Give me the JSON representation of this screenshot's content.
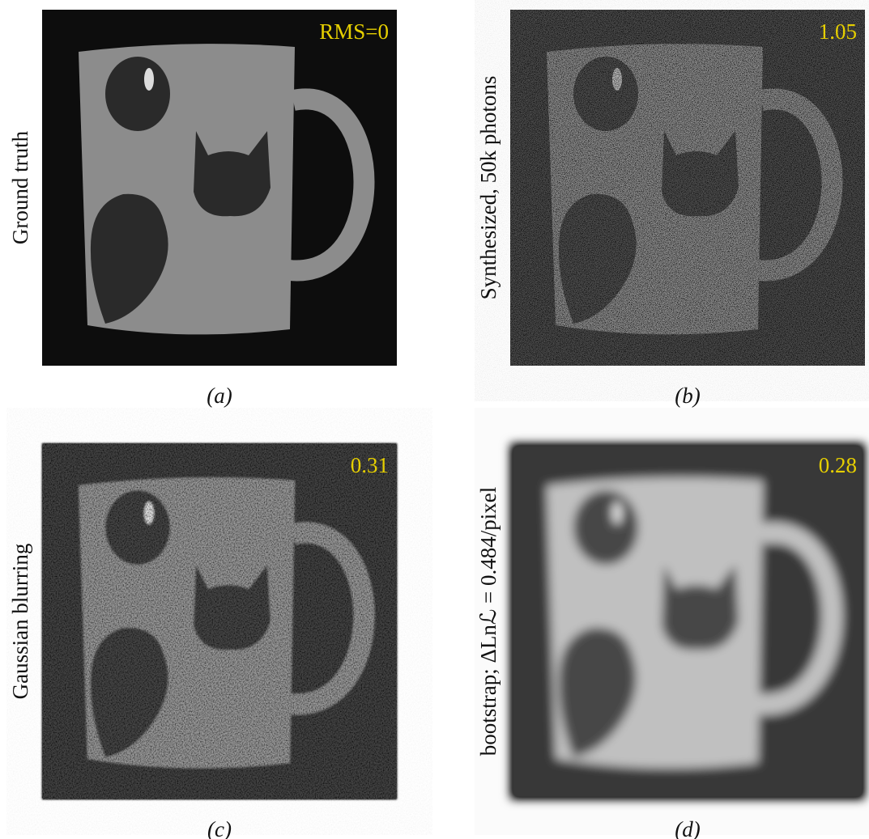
{
  "panels": [
    {
      "side_label": "Ground truth",
      "rms": "RMS=0",
      "caption": "(a)"
    },
    {
      "side_label": "Synthesized, 50k photons",
      "rms": "1.05",
      "caption": "(b)"
    },
    {
      "side_label": "Gaussian blurring",
      "rms": "0.31",
      "caption": "(c)"
    },
    {
      "side_label": "bootstrap; ΔLnℒ = 0.484/pixel",
      "rms": "0.28",
      "caption": "(d)"
    }
  ]
}
